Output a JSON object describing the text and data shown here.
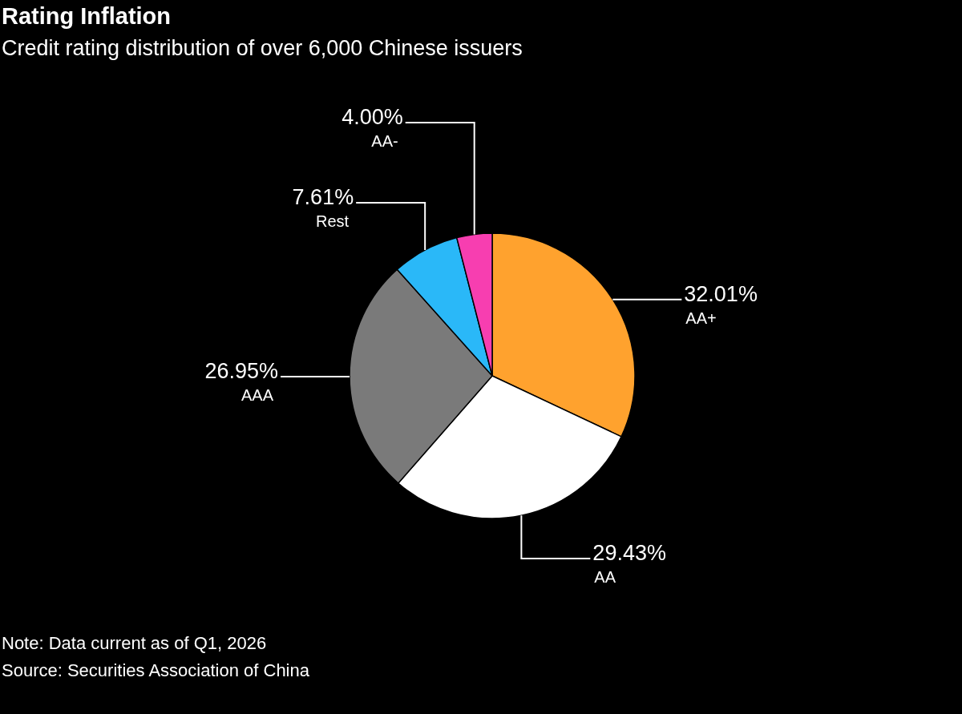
{
  "chart_data": {
    "type": "pie",
    "title": "Rating Inflation",
    "subtitle": "Credit rating distribution of over 6,000 Chinese issuers",
    "categories": [
      "AA+",
      "AA",
      "AAA",
      "Rest",
      "AA-"
    ],
    "values": [
      32.01,
      29.43,
      26.95,
      7.61,
      4.0
    ],
    "value_labels": [
      "32.01%",
      "29.43%",
      "26.95%",
      "7.61%",
      "4.00%"
    ],
    "colors": [
      "#ffa22e",
      "#ffffff",
      "#7a7a7a",
      "#2ab8f8",
      "#f73eb0"
    ],
    "annotations": [
      "Note: Data current as of Q1, 2026",
      "Source: Securities Association of China"
    ]
  }
}
